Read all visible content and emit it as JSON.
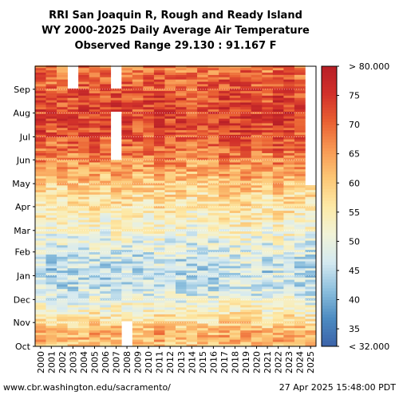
{
  "chart_data": {
    "type": "heatmap",
    "title": "RRI San Joaquin R, Rough and Ready Island",
    "subtitle": "WY 2000-2025 Daily Average Air Temperature",
    "subtitle2": "Observed Range 29.130 : 91.167 F",
    "x_categories": [
      "2000",
      "2001",
      "2002",
      "2003",
      "2004",
      "2005",
      "2006",
      "2007",
      "2008",
      "2009",
      "2010",
      "2011",
      "2012",
      "2013",
      "2014",
      "2015",
      "2016",
      "2017",
      "2018",
      "2019",
      "2020",
      "2021",
      "2022",
      "2023",
      "2024",
      "2025"
    ],
    "y_months": [
      "Oct",
      "Nov",
      "Dec",
      "Jan",
      "Feb",
      "Mar",
      "Apr",
      "May",
      "Jun",
      "Jul",
      "Aug",
      "Sep"
    ],
    "colorbar_ticks": [
      "< 32.000",
      "35",
      "40",
      "45",
      "50",
      "55",
      "60",
      "65",
      "70",
      "75",
      "> 80.000"
    ],
    "colorbar_range": [
      32,
      80
    ],
    "monthly_mean_F": {
      "Oct": 63,
      "Nov": 53,
      "Dec": 46,
      "Jan": 46,
      "Feb": 50,
      "Mar": 54,
      "Apr": 58,
      "May": 64,
      "Jun": 70,
      "Jul": 74,
      "Aug": 73,
      "Sep": 70
    },
    "missing_blocks": [
      {
        "year": "2007",
        "from_month": "Jul",
        "to_month": "Jun"
      },
      {
        "year": "2007",
        "from_month": "Sep",
        "to_month": "Sep"
      },
      {
        "year": "2003",
        "from_month": "Sep",
        "to_month": "Sep"
      },
      {
        "year": "2008",
        "from_month": "Oct",
        "to_month": "Oct"
      }
    ],
    "last_observed": "Apr 27, 2025"
  },
  "footer": {
    "left": "www.cbr.washington.edu/sacramento/",
    "right": "27 Apr 2025 15:48:00 PDT"
  },
  "colors": {
    "scale": [
      "#3b62a8",
      "#4c8bc1",
      "#8cbfdd",
      "#d4e9f1",
      "#f1f3d8",
      "#fde9a6",
      "#fcc776",
      "#f89a55",
      "#ea6233",
      "#d2312a",
      "#b81f27"
    ]
  }
}
